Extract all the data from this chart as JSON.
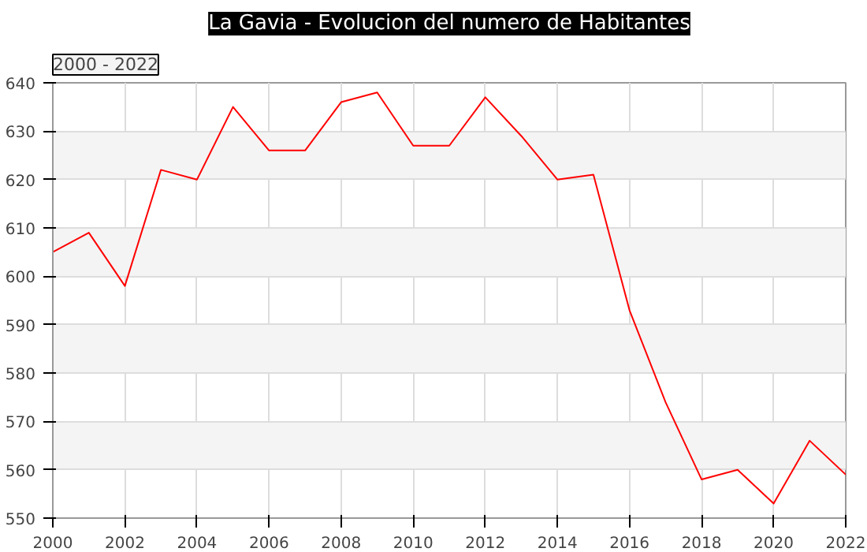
{
  "chart_data": {
    "type": "line",
    "title": "La Gavia - Evolucion del numero de Habitantes",
    "subtitle": "2000 - 2022",
    "x": [
      2000,
      2001,
      2002,
      2003,
      2004,
      2005,
      2006,
      2007,
      2008,
      2009,
      2010,
      2011,
      2012,
      2013,
      2014,
      2015,
      2016,
      2017,
      2018,
      2019,
      2020,
      2021,
      2022
    ],
    "series": [
      {
        "color": "#ff0000",
        "values": [
          605,
          609,
          598,
          622,
          620,
          635,
          626,
          626,
          636,
          638,
          627,
          627,
          637,
          629,
          620,
          621,
          593,
          574,
          558,
          560,
          553,
          566,
          559
        ]
      }
    ],
    "xlim": [
      2000,
      2022
    ],
    "xticks": [
      2000,
      2002,
      2004,
      2006,
      2008,
      2010,
      2012,
      2014,
      2016,
      2018,
      2020,
      2022
    ],
    "ylim": [
      550,
      640
    ],
    "yticks": [
      550,
      560,
      570,
      580,
      590,
      600,
      610,
      620,
      630,
      640
    ],
    "grid": true,
    "marker": "none",
    "line_style": "solid"
  }
}
